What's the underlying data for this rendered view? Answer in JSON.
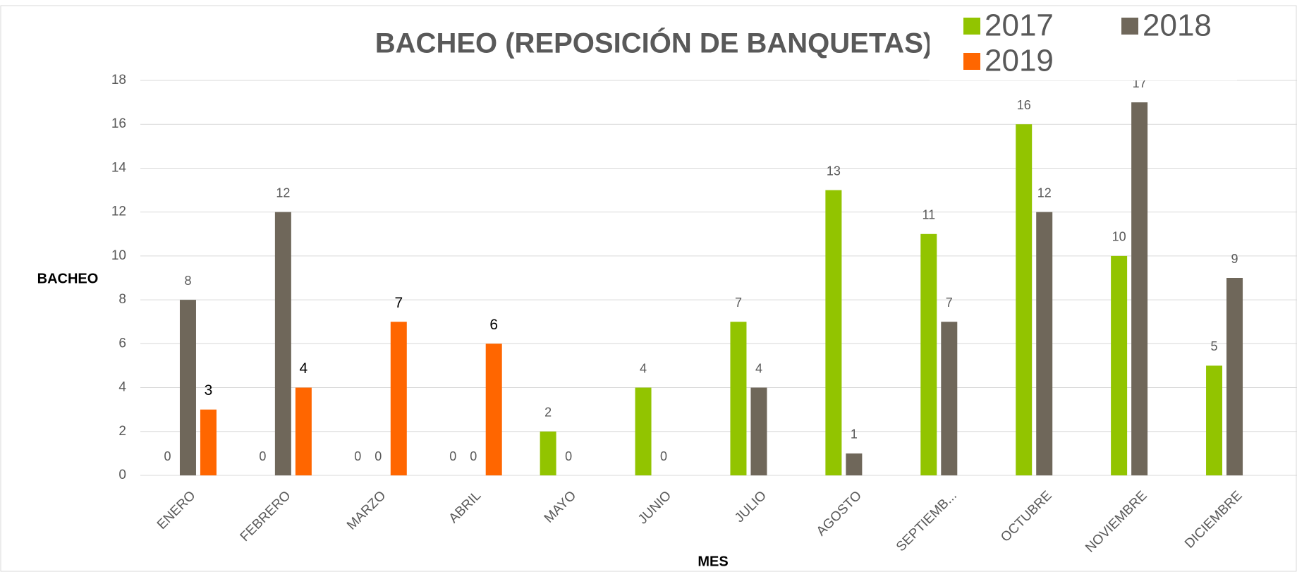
{
  "chart_data": {
    "type": "bar",
    "title": "BACHEO (REPOSICIÓN DE BANQUETAS)",
    "x_label": "MES",
    "y_label": "BACHEO",
    "categories": [
      "ENERO",
      "FEBRERO",
      "MARZO",
      "ABRIL",
      "MAYO",
      "JUNIO",
      "JULIO",
      "AGOSTO",
      "SEPTIEMB...",
      "OCTUBRE",
      "NOVIEMBRE",
      "DICIEMBRE"
    ],
    "series": [
      {
        "name": "2017",
        "color": "#92c400",
        "values": [
          0,
          0,
          0,
          0,
          2,
          4,
          7,
          13,
          11,
          16,
          10,
          5
        ]
      },
      {
        "name": "2018",
        "color": "#6f675a",
        "values": [
          8,
          12,
          0,
          0,
          0,
          0,
          4,
          1,
          7,
          12,
          17,
          9
        ]
      },
      {
        "name": "2019",
        "color": "#ff6600",
        "values": [
          3,
          4,
          7,
          6,
          null,
          null,
          null,
          null,
          null,
          null,
          null,
          null
        ]
      }
    ],
    "ylim": [
      0,
      18
    ],
    "yticks": [
      0,
      2,
      4,
      6,
      8,
      10,
      12,
      14,
      16,
      18
    ],
    "grid": true,
    "legend": "top-right"
  }
}
